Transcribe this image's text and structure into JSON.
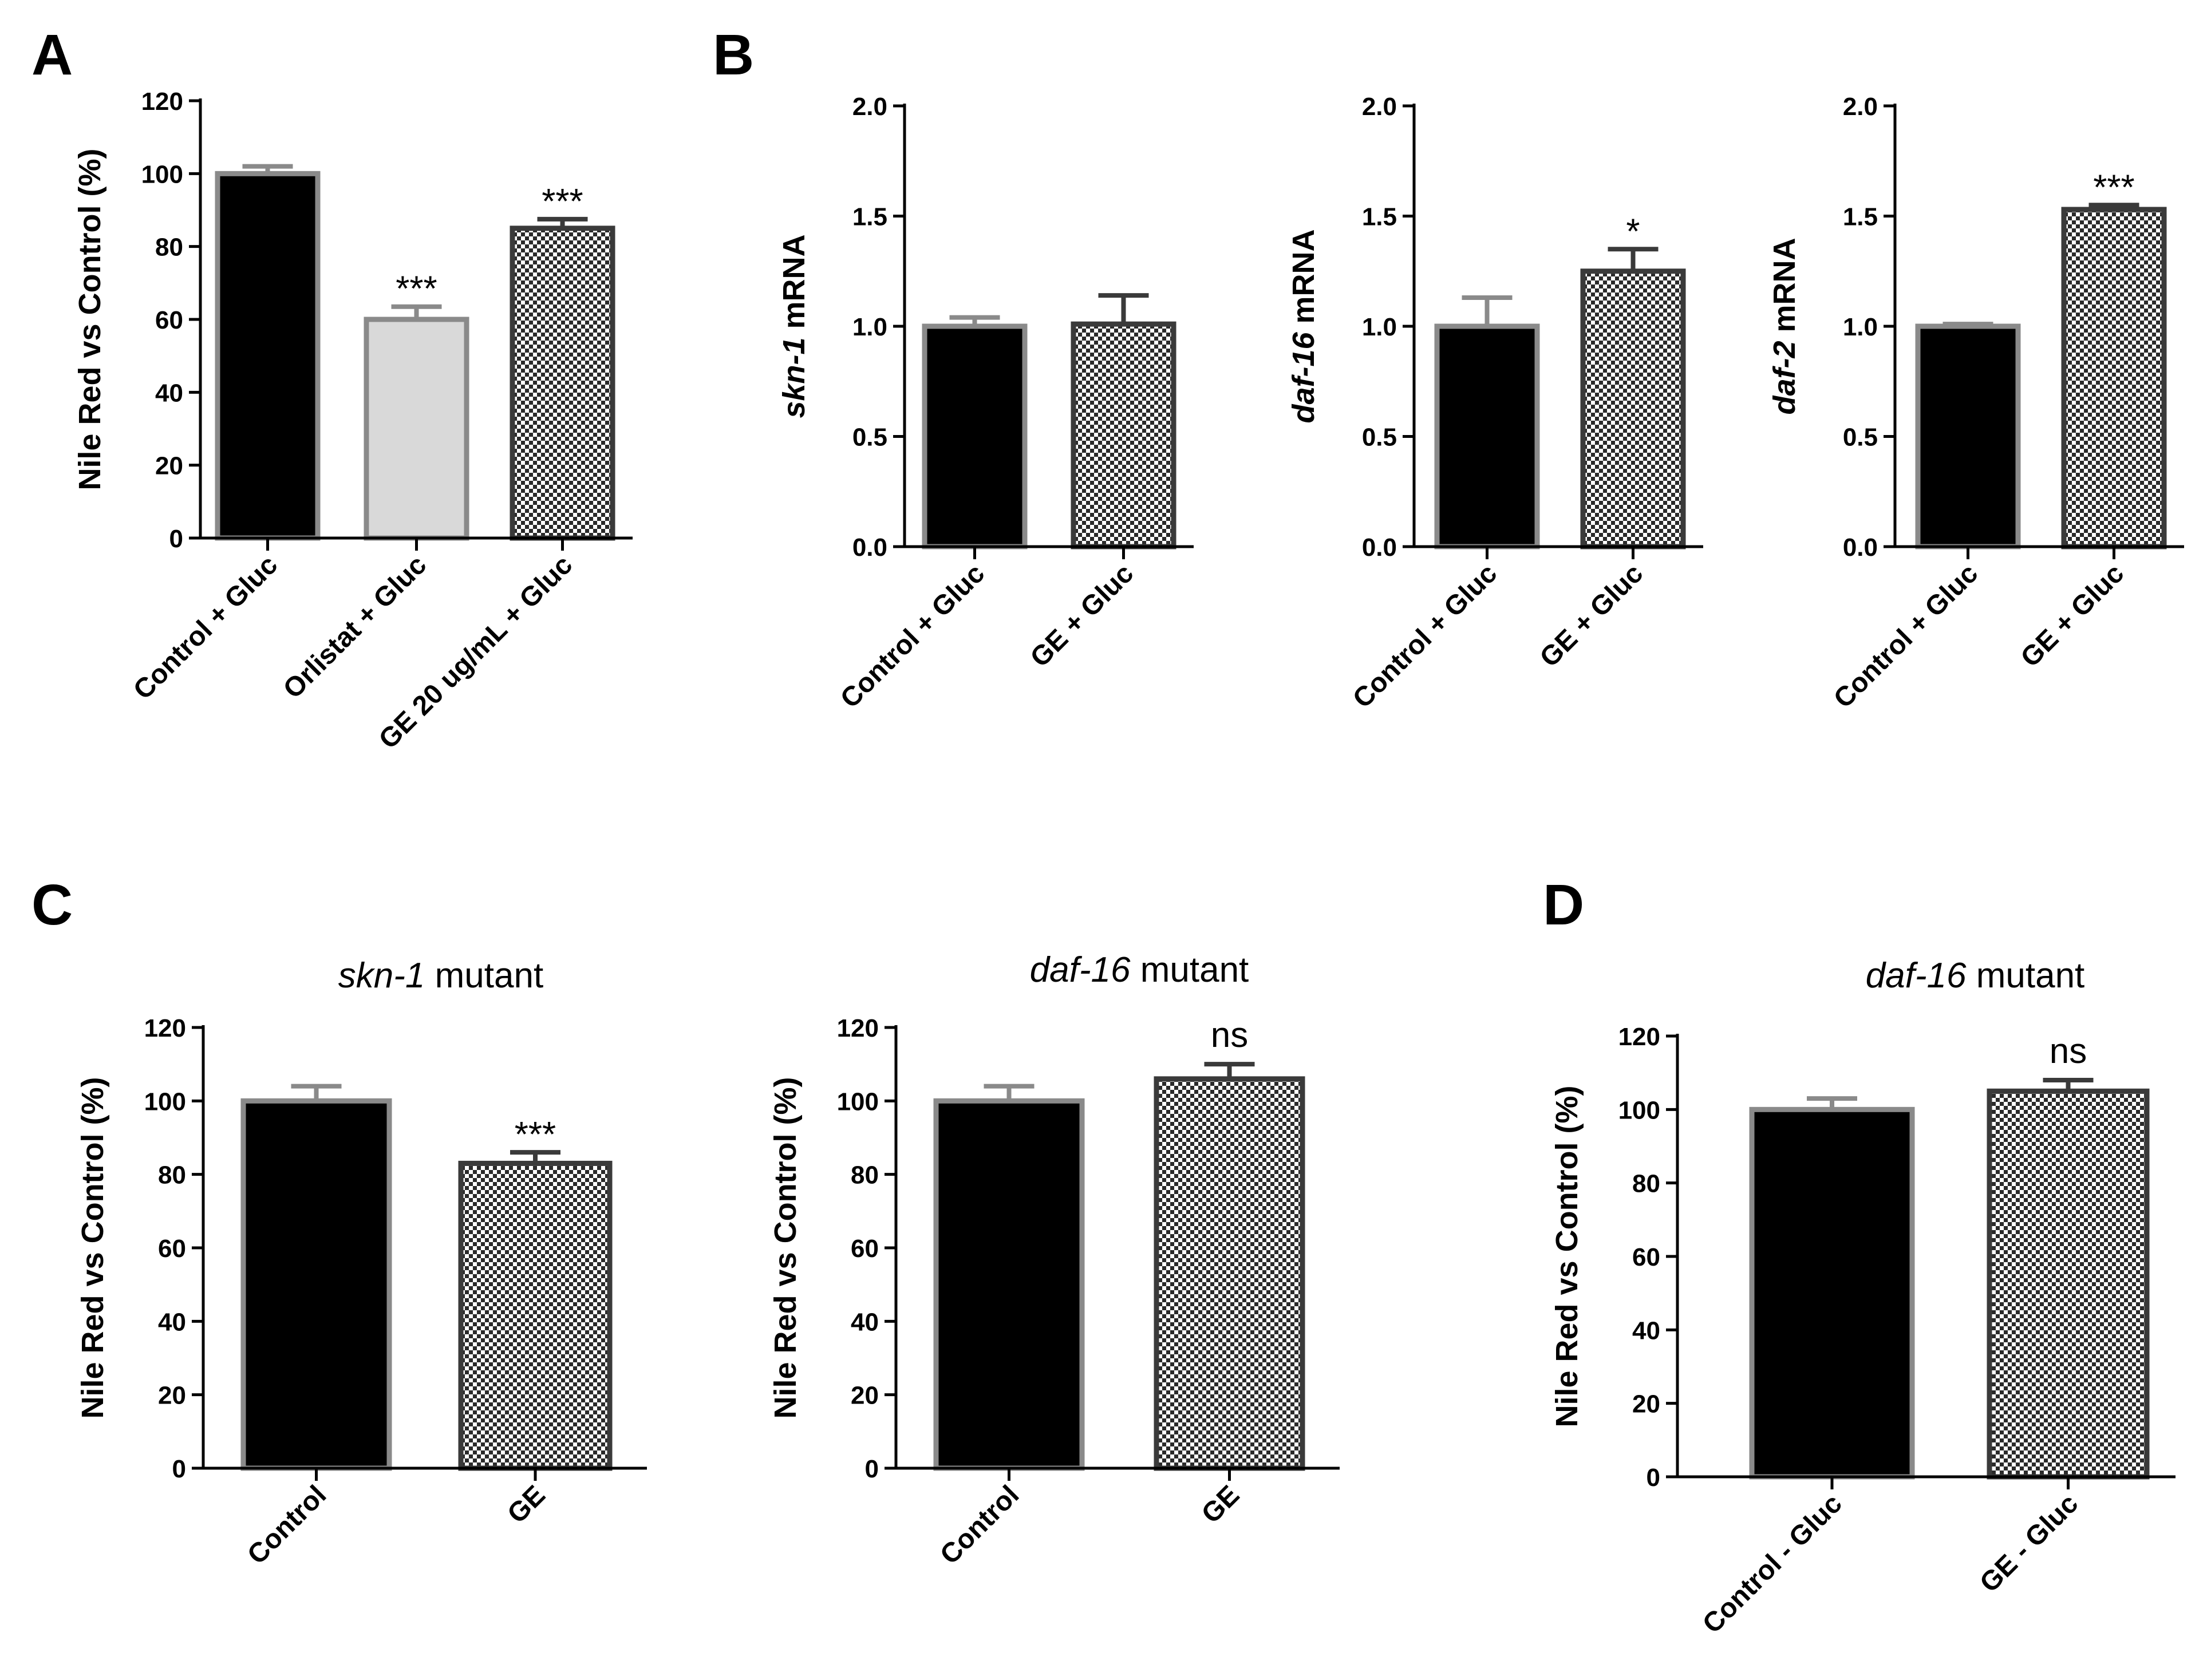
{
  "figure": {
    "background": "#ffffff",
    "fill_solid": "#000000",
    "fill_light": "#d9d9d9",
    "edge_dark": "#3a3a3a",
    "edge_gray": "#8a8a8a"
  },
  "chart_data": [
    {
      "id": "A",
      "panel": "A",
      "type": "bar",
      "title": "",
      "ylabel": "Nile Red vs Control (%)",
      "ylim": [
        0,
        120
      ],
      "ytick_step": 20,
      "yticks": [
        "0",
        "20",
        "40",
        "60",
        "80",
        "100",
        "120"
      ],
      "categories": [
        "Control + Gluc",
        "Orlistat + Gluc",
        "GE 20 ug/mL + Gluc"
      ],
      "values": [
        100,
        60,
        85
      ],
      "errors": [
        2,
        3.5,
        2.5
      ],
      "significance": [
        "",
        "***",
        "***"
      ],
      "fills": [
        "solid",
        "light",
        "checker"
      ]
    },
    {
      "id": "B1",
      "panel": "B",
      "type": "bar",
      "title": "",
      "ylabel": "skn-1 mRNA",
      "ylabel_italic": "skn-1",
      "ylabel_rest": " mRNA",
      "ylim": [
        0,
        2.0
      ],
      "ytick_step": 0.5,
      "yticks": [
        "0.0",
        "0.5",
        "1.0",
        "1.5",
        "2.0"
      ],
      "categories": [
        "Control + Gluc",
        "GE + Gluc"
      ],
      "values": [
        1.0,
        1.01
      ],
      "errors": [
        0.04,
        0.13
      ],
      "significance": [
        "",
        ""
      ],
      "fills": [
        "solid",
        "checker"
      ]
    },
    {
      "id": "B2",
      "panel": "B",
      "type": "bar",
      "title": "",
      "ylabel": "daf-16 mRNA",
      "ylabel_italic": "daf-16",
      "ylabel_rest": " mRNA",
      "ylim": [
        0,
        2.0
      ],
      "ytick_step": 0.5,
      "yticks": [
        "0.0",
        "0.5",
        "1.0",
        "1.5",
        "2.0"
      ],
      "categories": [
        "Control + Gluc",
        "GE + Gluc"
      ],
      "values": [
        1.0,
        1.25
      ],
      "errors": [
        0.13,
        0.1
      ],
      "significance": [
        "",
        "*"
      ],
      "fills": [
        "solid",
        "checker"
      ]
    },
    {
      "id": "B3",
      "panel": "B",
      "type": "bar",
      "title": "",
      "ylabel": "daf-2 mRNA",
      "ylabel_italic": "daf-2",
      "ylabel_rest": " mRNA",
      "ylim": [
        0,
        2.0
      ],
      "ytick_step": 0.5,
      "yticks": [
        "0.0",
        "0.5",
        "1.0",
        "1.5",
        "2.0"
      ],
      "categories": [
        "Control + Gluc",
        "GE + Gluc"
      ],
      "values": [
        1.0,
        1.53
      ],
      "errors": [
        0.01,
        0.02
      ],
      "significance": [
        "",
        "***"
      ],
      "fills": [
        "solid",
        "checker"
      ]
    },
    {
      "id": "C1",
      "panel": "C",
      "type": "bar",
      "title": "skn-1 mutant",
      "title_italic": "skn-1",
      "title_rest": " mutant",
      "ylabel": "Nile Red vs Control (%)",
      "ylim": [
        0,
        120
      ],
      "ytick_step": 20,
      "yticks": [
        "0",
        "20",
        "40",
        "60",
        "80",
        "100",
        "120"
      ],
      "categories": [
        "Control",
        "GE"
      ],
      "values": [
        100,
        83
      ],
      "errors": [
        4,
        3
      ],
      "significance": [
        "",
        "***"
      ],
      "fills": [
        "solid",
        "checker"
      ]
    },
    {
      "id": "C2",
      "panel": "",
      "type": "bar",
      "title": "daf-16 mutant",
      "title_italic": "daf-16",
      "title_rest": " mutant",
      "ylabel": "Nile Red vs Control (%)",
      "ylim": [
        0,
        120
      ],
      "ytick_step": 20,
      "yticks": [
        "0",
        "20",
        "40",
        "60",
        "80",
        "100",
        "120"
      ],
      "categories": [
        "Control",
        "GE"
      ],
      "values": [
        100,
        106
      ],
      "errors": [
        4,
        4
      ],
      "significance": [
        "",
        "ns"
      ],
      "fills": [
        "solid",
        "checker"
      ]
    },
    {
      "id": "D",
      "panel": "D",
      "type": "bar",
      "title": "daf-16 mutant",
      "title_italic": "daf-16",
      "title_rest": " mutant",
      "ylabel": "Nile Red vs Control (%)",
      "ylim": [
        0,
        120
      ],
      "ytick_step": 20,
      "yticks": [
        "0",
        "20",
        "40",
        "60",
        "80",
        "100",
        "120"
      ],
      "categories": [
        "Control - Gluc",
        "GE - Gluc"
      ],
      "values": [
        100,
        105
      ],
      "errors": [
        3,
        3
      ],
      "significance": [
        "",
        "ns"
      ],
      "fills": [
        "solid",
        "checker"
      ]
    }
  ]
}
